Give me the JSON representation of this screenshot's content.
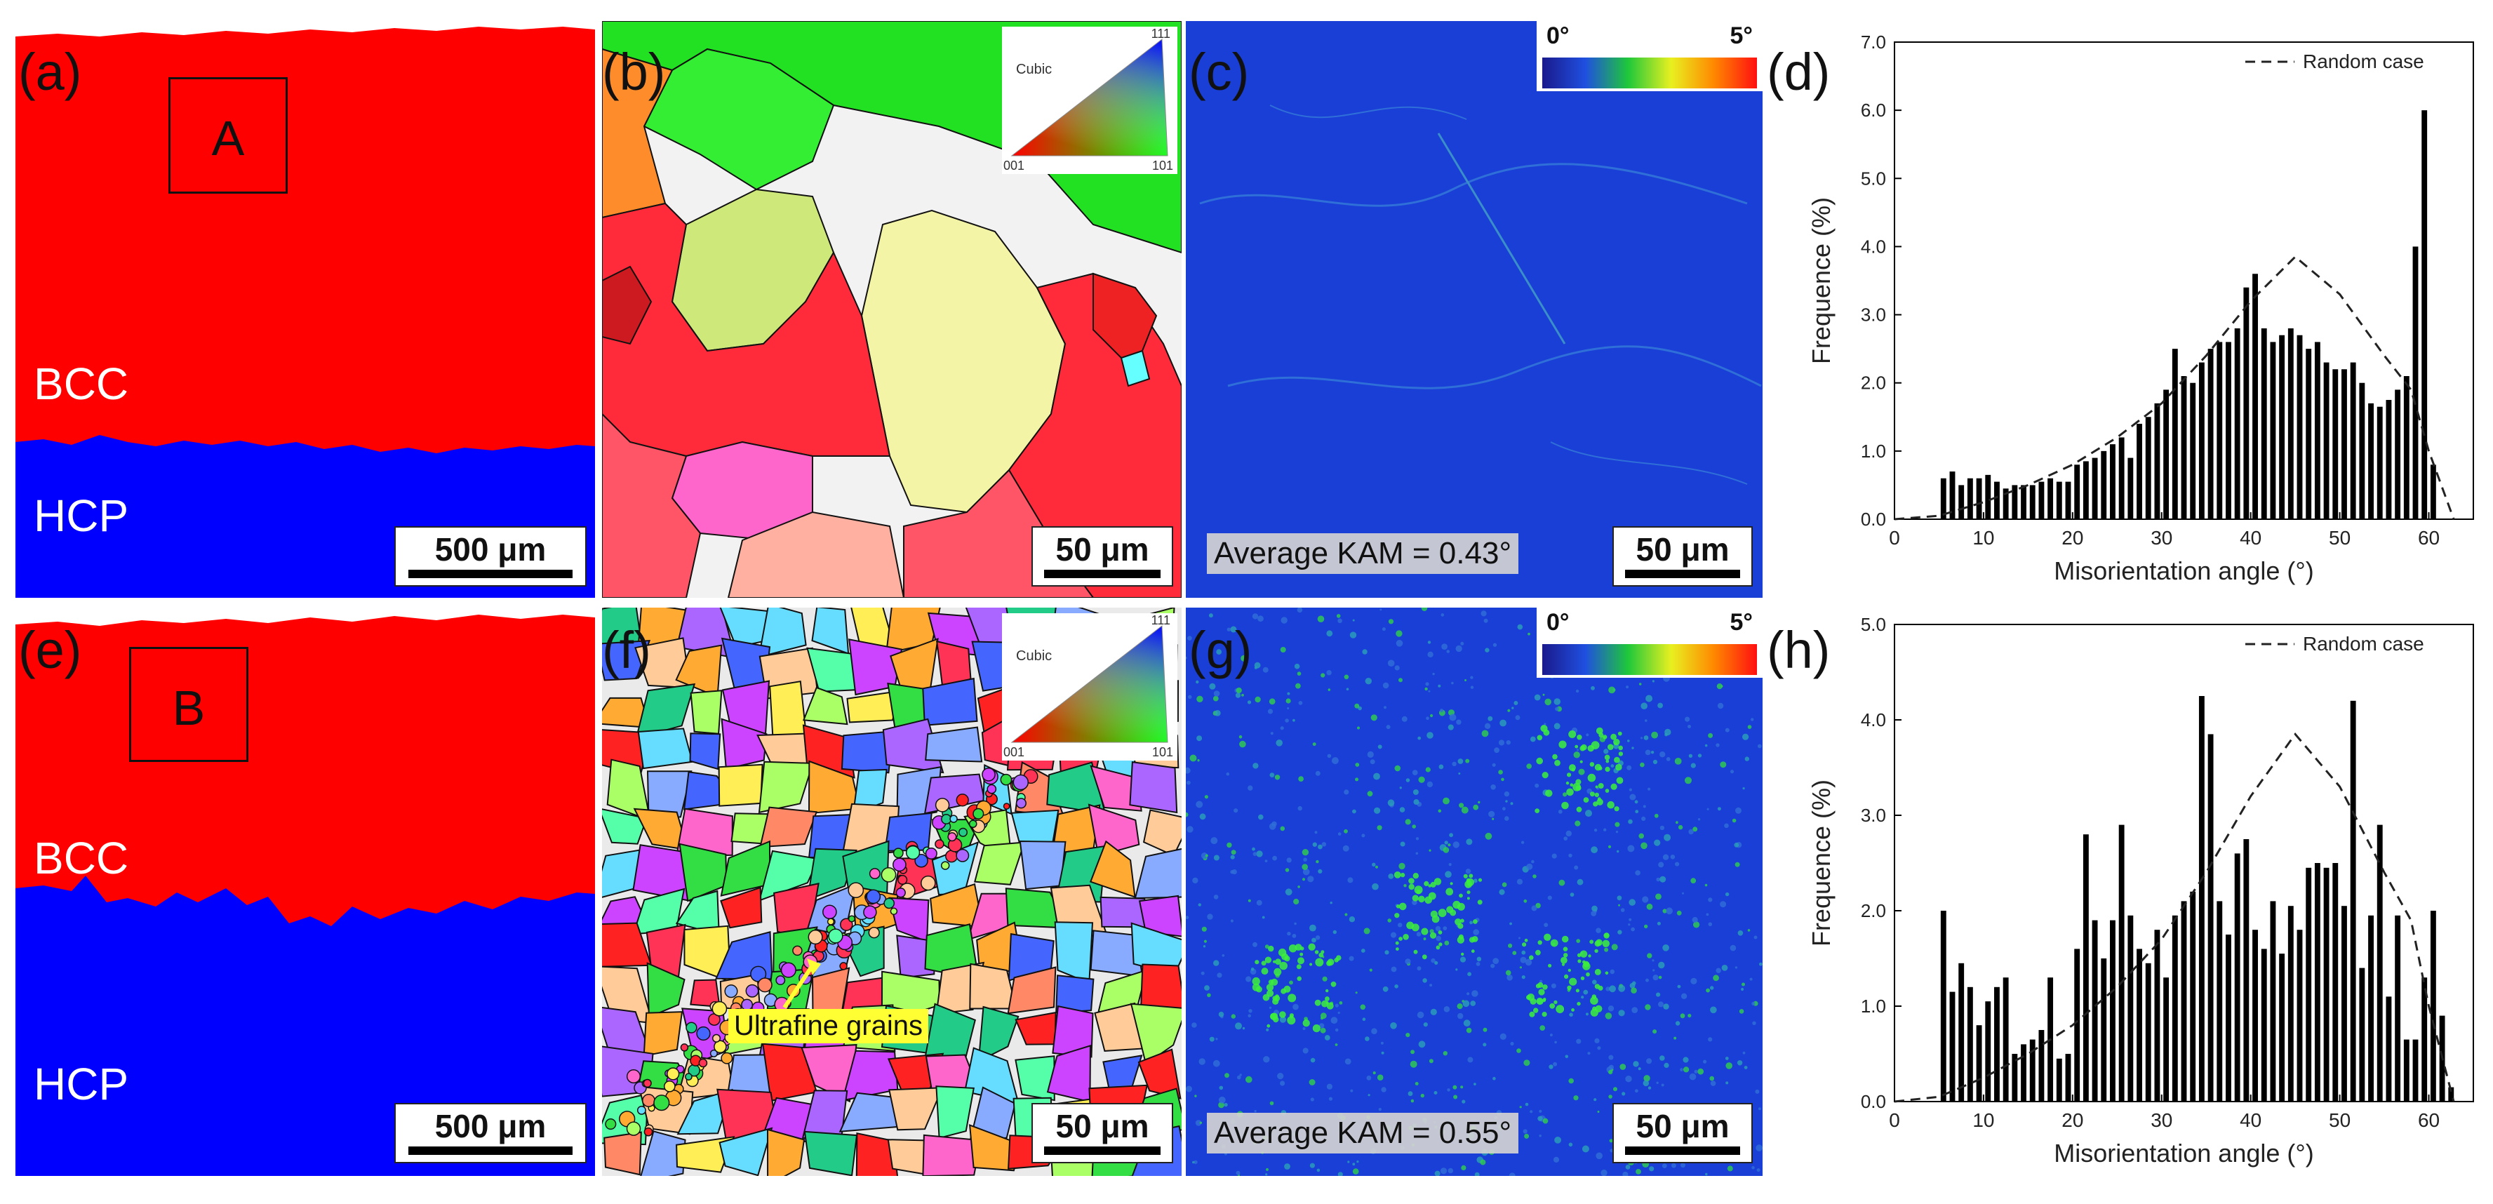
{
  "panel_labels": [
    "(a)",
    "(b)",
    "(c)",
    "(d)",
    "(e)",
    "(f)",
    "(g)",
    "(h)"
  ],
  "phase_maps": {
    "top": {
      "box_label": "A",
      "upper_phase": "BCC",
      "lower_phase": "HCP",
      "scale": "500 μm",
      "upper_color": "#ff0000",
      "lower_color": "#0000ff"
    },
    "bottom": {
      "box_label": "B",
      "upper_phase": "BCC",
      "lower_phase": "HCP",
      "scale": "500 μm",
      "upper_color": "#ff0000",
      "lower_color": "#0000ff"
    }
  },
  "ipf_maps": {
    "top": {
      "scale": "50 μm",
      "legend_title": "Cubic",
      "legend_111": "111",
      "legend_001": "001",
      "legend_101": "101"
    },
    "bottom": {
      "scale": "50 μm",
      "legend_title": "Cubic",
      "legend_111": "111",
      "legend_001": "001",
      "legend_101": "101",
      "annotation": "Ultrafine grains"
    }
  },
  "kam_maps": {
    "top": {
      "scale_min": "0°",
      "scale_max": "5°",
      "average": "Average KAM = 0.43°",
      "scale": "50 μm",
      "base_color": "#1a3fd6"
    },
    "bottom": {
      "scale_min": "0°",
      "scale_max": "5°",
      "average": "Average KAM = 0.55°",
      "scale": "50 μm",
      "base_color": "#1a3fd6"
    }
  },
  "chart_data": [
    {
      "type": "bar",
      "panel": "(d)",
      "xlabel": "Misorientation angle (°)",
      "ylabel": "Frequence (%)",
      "xlim": [
        0,
        65
      ],
      "ylim": [
        0,
        7
      ],
      "xticks": [
        0,
        10,
        20,
        30,
        40,
        50,
        60
      ],
      "yticks": [
        "0.0",
        "1.0",
        "2.0",
        "3.0",
        "4.0",
        "5.0",
        "6.0",
        "7.0"
      ],
      "legend": "Random case",
      "x": [
        5.5,
        6.5,
        7.5,
        8.5,
        9.5,
        10.5,
        11.5,
        12.5,
        13.5,
        14.5,
        15.5,
        16.5,
        17.5,
        18.5,
        19.5,
        20.5,
        21.5,
        22.5,
        23.5,
        24.5,
        25.5,
        26.5,
        27.5,
        28.5,
        29.5,
        30.5,
        31.5,
        32.5,
        33.5,
        34.5,
        35.5,
        36.5,
        37.5,
        38.5,
        39.5,
        40.5,
        41.5,
        42.5,
        43.5,
        44.5,
        45.5,
        46.5,
        47.5,
        48.5,
        49.5,
        50.5,
        51.5,
        52.5,
        53.5,
        54.5,
        55.5,
        56.5,
        57.5,
        58.5,
        59.5,
        60.5
      ],
      "values": [
        0.6,
        0.7,
        0.5,
        0.6,
        0.6,
        0.65,
        0.55,
        0.45,
        0.5,
        0.5,
        0.5,
        0.55,
        0.6,
        0.55,
        0.55,
        0.8,
        0.85,
        0.9,
        1.0,
        1.1,
        1.2,
        0.9,
        1.4,
        1.5,
        1.7,
        1.9,
        2.5,
        2.1,
        2.0,
        2.3,
        2.5,
        2.6,
        2.6,
        2.8,
        3.4,
        3.6,
        2.8,
        2.6,
        2.7,
        2.8,
        2.7,
        2.5,
        2.6,
        2.3,
        2.2,
        2.2,
        2.3,
        2.0,
        1.7,
        1.65,
        1.75,
        1.9,
        2.1,
        4.0,
        6.0,
        0.8
      ],
      "random_case": [
        [
          0,
          0
        ],
        [
          5,
          0.05
        ],
        [
          10,
          0.25
        ],
        [
          15,
          0.5
        ],
        [
          20,
          0.8
        ],
        [
          25,
          1.2
        ],
        [
          30,
          1.7
        ],
        [
          35,
          2.4
        ],
        [
          40,
          3.2
        ],
        [
          45,
          3.85
        ],
        [
          50,
          3.3
        ],
        [
          55,
          2.4
        ],
        [
          58,
          1.9
        ],
        [
          60,
          1.0
        ],
        [
          62.8,
          0
        ]
      ]
    },
    {
      "type": "bar",
      "panel": "(h)",
      "xlabel": "Misorientation angle (°)",
      "ylabel": "Frequence (%)",
      "xlim": [
        0,
        65
      ],
      "ylim": [
        0,
        5
      ],
      "xticks": [
        0,
        10,
        20,
        30,
        40,
        50,
        60
      ],
      "yticks": [
        "0.0",
        "1.0",
        "2.0",
        "3.0",
        "4.0",
        "5.0"
      ],
      "legend": "Random case",
      "x": [
        5.5,
        6.5,
        7.5,
        8.5,
        9.5,
        10.5,
        11.5,
        12.5,
        13.5,
        14.5,
        15.5,
        16.5,
        17.5,
        18.5,
        19.5,
        20.5,
        21.5,
        22.5,
        23.5,
        24.5,
        25.5,
        26.5,
        27.5,
        28.5,
        29.5,
        30.5,
        31.5,
        32.5,
        33.5,
        34.5,
        35.5,
        36.5,
        37.5,
        38.5,
        39.5,
        40.5,
        41.5,
        42.5,
        43.5,
        44.5,
        45.5,
        46.5,
        47.5,
        48.5,
        49.5,
        50.5,
        51.5,
        52.5,
        53.5,
        54.5,
        55.5,
        56.5,
        57.5,
        58.5,
        59.5,
        60.5,
        61.5,
        62.5
      ],
      "values": [
        2.0,
        1.15,
        1.45,
        1.2,
        0.8,
        1.05,
        1.2,
        1.3,
        0.5,
        0.6,
        0.65,
        0.75,
        1.3,
        0.45,
        0.5,
        1.6,
        2.8,
        1.9,
        1.5,
        1.9,
        2.9,
        1.95,
        1.6,
        1.45,
        1.8,
        1.3,
        1.95,
        2.1,
        2.2,
        4.25,
        3.85,
        2.1,
        1.75,
        2.6,
        2.75,
        1.8,
        1.6,
        2.1,
        1.55,
        2.05,
        1.8,
        2.45,
        2.5,
        2.45,
        2.5,
        2.05,
        4.2,
        1.4,
        1.95,
        2.9,
        1.1,
        1.95,
        0.65,
        0.65,
        1.3,
        2.0,
        0.9,
        0.15
      ],
      "random_case": [
        [
          0,
          0
        ],
        [
          5,
          0.05
        ],
        [
          10,
          0.25
        ],
        [
          15,
          0.5
        ],
        [
          20,
          0.8
        ],
        [
          25,
          1.2
        ],
        [
          30,
          1.7
        ],
        [
          35,
          2.4
        ],
        [
          40,
          3.2
        ],
        [
          45,
          3.85
        ],
        [
          50,
          3.3
        ],
        [
          55,
          2.4
        ],
        [
          58,
          1.9
        ],
        [
          60,
          1.0
        ],
        [
          62.8,
          0
        ]
      ]
    }
  ]
}
